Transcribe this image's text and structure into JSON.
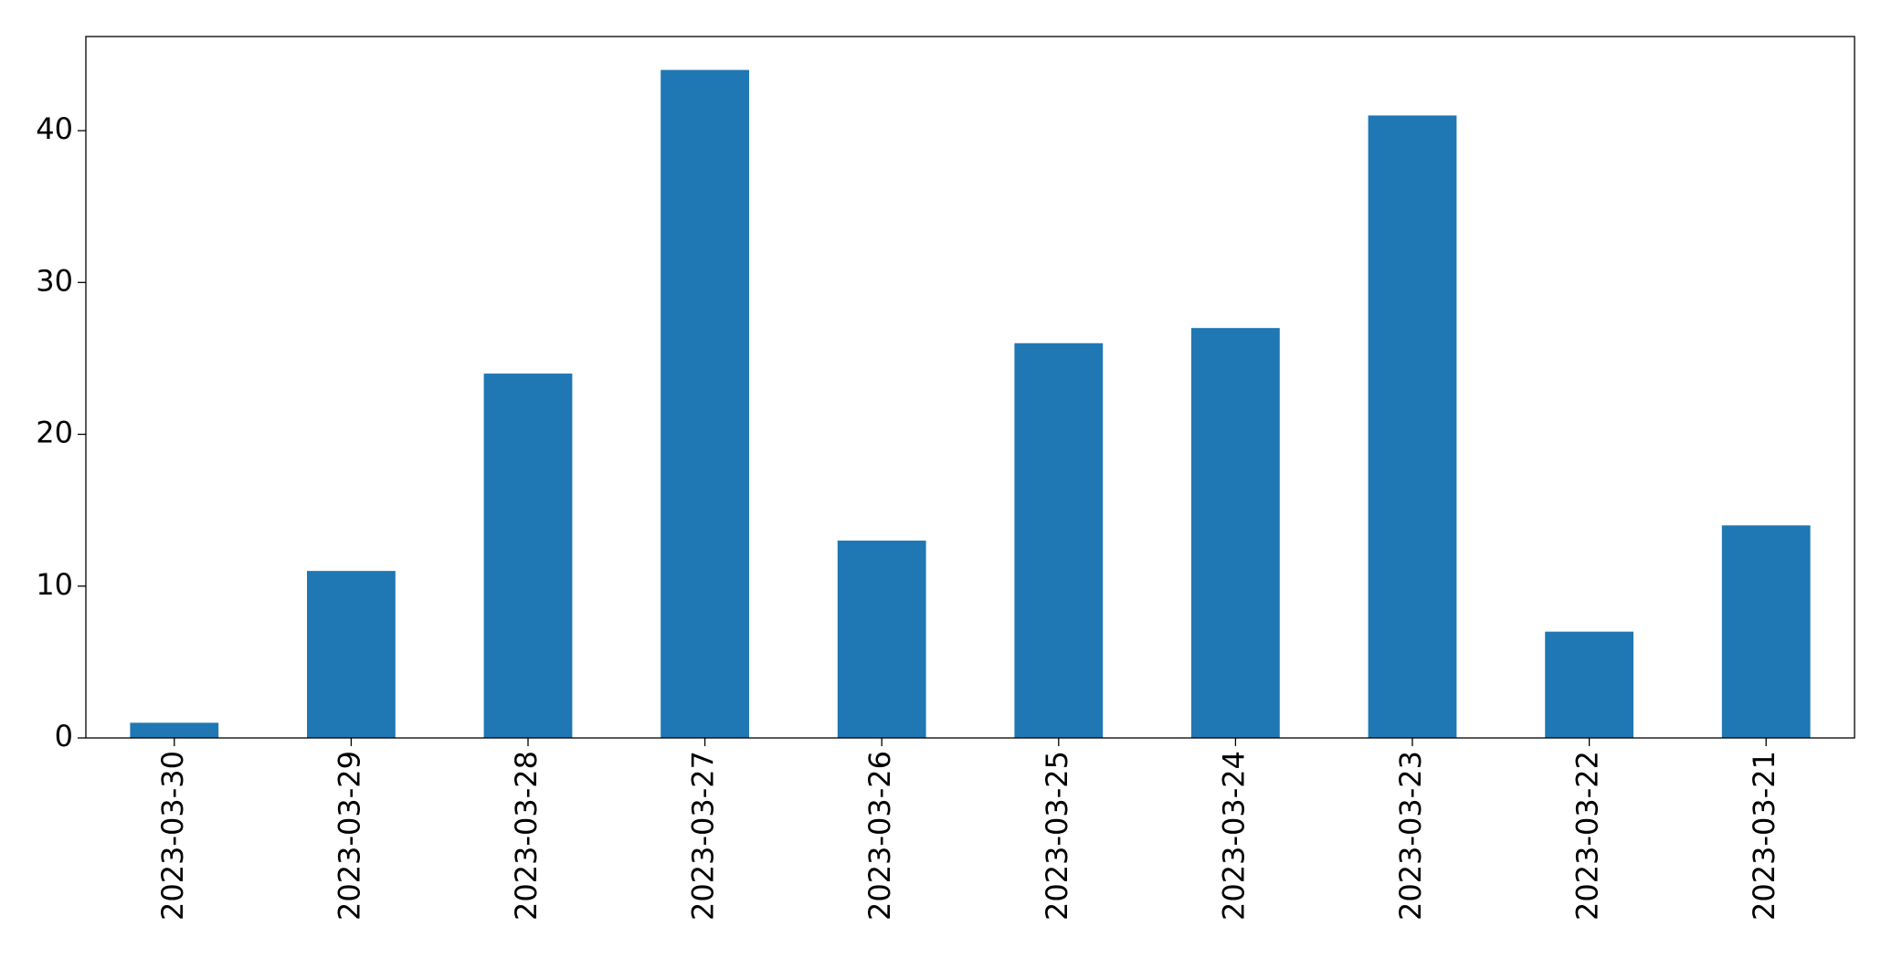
{
  "chart_data": {
    "type": "bar",
    "categories": [
      "2023-03-30",
      "2023-03-29",
      "2023-03-28",
      "2023-03-27",
      "2023-03-26",
      "2023-03-25",
      "2023-03-24",
      "2023-03-23",
      "2023-03-22",
      "2023-03-21"
    ],
    "values": [
      1,
      11,
      24,
      44,
      13,
      26,
      27,
      41,
      7,
      14
    ],
    "color": "#1f77b4",
    "ylim": [
      0,
      46.2
    ],
    "yticks": [
      0,
      10,
      20,
      30,
      40
    ],
    "grid": false
  }
}
